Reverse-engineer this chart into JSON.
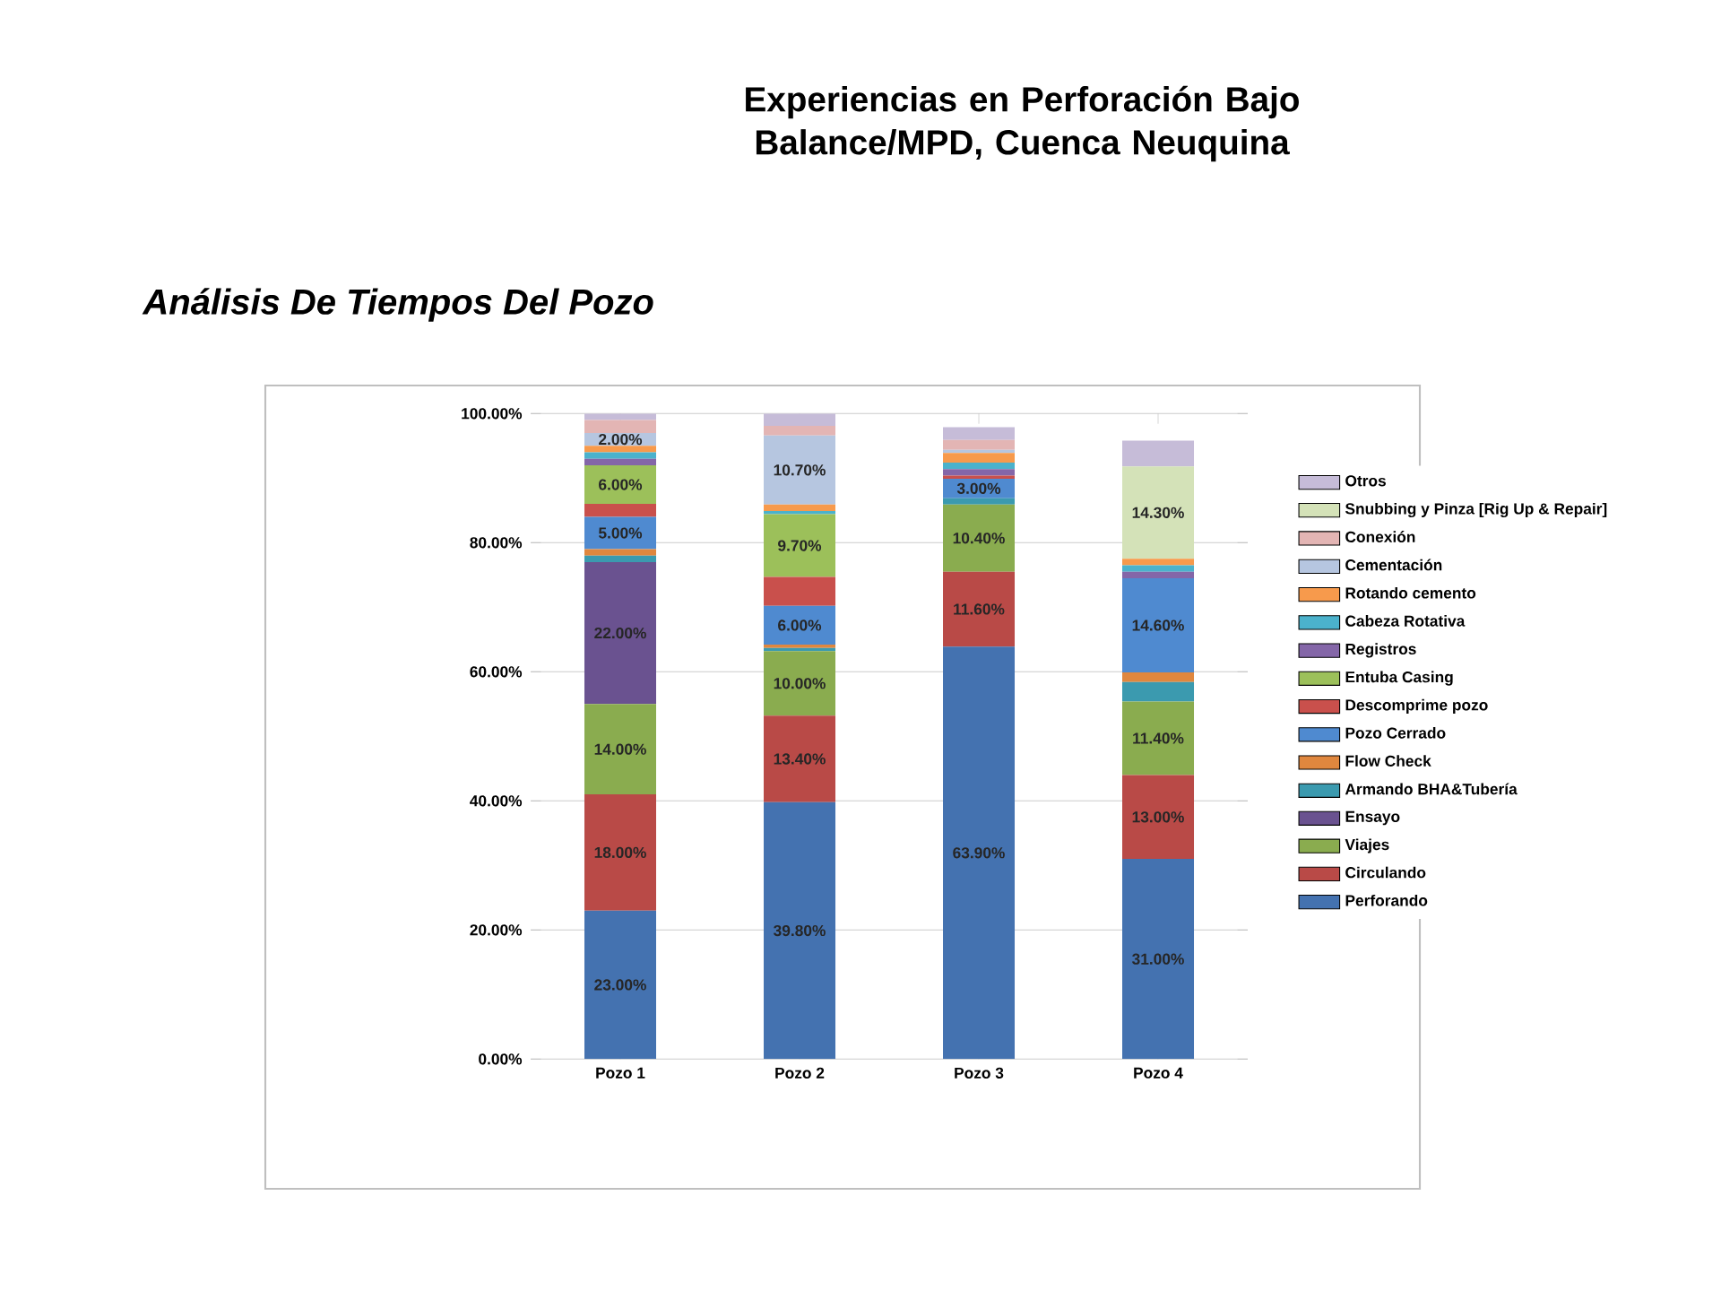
{
  "chart_data": {
    "type": "bar",
    "stacked": true,
    "title": "Experiencias en Perforación Bajo Balance/MPD, Cuenca Neuquina",
    "subtitle": "Análisis De Tiempos Del Pozo",
    "categories": [
      "Pozo 1",
      "Pozo 2",
      "Pozo 3",
      "Pozo 4"
    ],
    "series": [
      {
        "name": "Perforando",
        "color": "#4472b0",
        "values": [
          23,
          39.8,
          63.9,
          31
        ],
        "value_labels": [
          "23.00%",
          "39.80%",
          "63.90%",
          "31.00%"
        ]
      },
      {
        "name": "Circulando",
        "color": "#b94a47",
        "values": [
          18,
          13.4,
          11.6,
          13
        ],
        "value_labels": [
          "18.00%",
          "13.40%",
          "11.60%",
          "13.00%"
        ]
      },
      {
        "name": "Viajes",
        "color": "#8aac4f",
        "values": [
          14,
          10,
          10.4,
          11.4
        ],
        "value_labels": [
          "14.00%",
          "10.00%",
          "10.40%",
          "11.40%"
        ]
      },
      {
        "name": "Ensayo",
        "color": "#6a5290",
        "values": [
          22,
          0,
          0,
          0
        ],
        "value_labels": [
          "22.00%",
          null,
          null,
          null
        ]
      },
      {
        "name": "Armando BHA&Tubería",
        "color": "#3b9aaf",
        "values": [
          1,
          0.5,
          1,
          3
        ],
        "value_labels": [
          null,
          null,
          null,
          null
        ]
      },
      {
        "name": "Flow Check",
        "color": "#e0873e",
        "values": [
          1,
          0.5,
          0,
          1.5
        ],
        "value_labels": [
          null,
          null,
          null,
          null
        ]
      },
      {
        "name": "Pozo Cerrado",
        "color": "#4f8ad0",
        "values": [
          5,
          6,
          3,
          14.6
        ],
        "value_labels": [
          "5.00%",
          "6.00%",
          "3.00%",
          "14.60%"
        ]
      },
      {
        "name": "Descomprime pozo",
        "color": "#c9504c",
        "values": [
          2,
          4.5,
          0.5,
          0
        ],
        "value_labels": [
          null,
          null,
          null,
          null
        ]
      },
      {
        "name": "Entuba Casing",
        "color": "#9cc05a",
        "values": [
          6,
          9.7,
          0,
          0
        ],
        "value_labels": [
          "6.00%",
          "9.70%",
          null,
          null
        ]
      },
      {
        "name": "Registros",
        "color": "#8466a8",
        "values": [
          1,
          0,
          1,
          1
        ],
        "value_labels": [
          null,
          null,
          null,
          null
        ]
      },
      {
        "name": "Cabeza Rotativa",
        "color": "#4bb2cc",
        "values": [
          1,
          0.5,
          1,
          1
        ],
        "value_labels": [
          null,
          null,
          null,
          null
        ]
      },
      {
        "name": "Rotando cemento",
        "color": "#f79a4c",
        "values": [
          1,
          1,
          1.5,
          1
        ],
        "value_labels": [
          null,
          null,
          null,
          null
        ]
      },
      {
        "name": "Cementación",
        "color": "#b6c6e0",
        "values": [
          2,
          10.7,
          0.5,
          0
        ],
        "value_labels": [
          "2.00%",
          "10.70%",
          null,
          null
        ]
      },
      {
        "name": "Conexión",
        "color": "#e3b5b4",
        "values": [
          2,
          1.5,
          1.5,
          0
        ],
        "value_labels": [
          null,
          null,
          null,
          null
        ]
      },
      {
        "name": "Snubbing y Pinza [Rig Up & Repair]",
        "color": "#d4e2b8",
        "values": [
          0,
          0,
          0,
          14.3
        ],
        "value_labels": [
          null,
          null,
          null,
          "14.30%"
        ]
      },
      {
        "name": "Otros",
        "color": "#c6bcd8",
        "values": [
          1,
          1.9,
          2,
          4
        ],
        "value_labels": [
          null,
          null,
          null,
          null
        ]
      }
    ],
    "ylim": [
      0,
      100
    ],
    "yticks": [
      {
        "value": 0,
        "label": "0.00%"
      },
      {
        "value": 20,
        "label": "20.00%"
      },
      {
        "value": 40,
        "label": "40.00%"
      },
      {
        "value": 60,
        "label": "60.00%"
      },
      {
        "value": 80,
        "label": "80.00%"
      },
      {
        "value": 100,
        "label": "100.00%"
      }
    ],
    "grid": "y",
    "legend": "right"
  }
}
